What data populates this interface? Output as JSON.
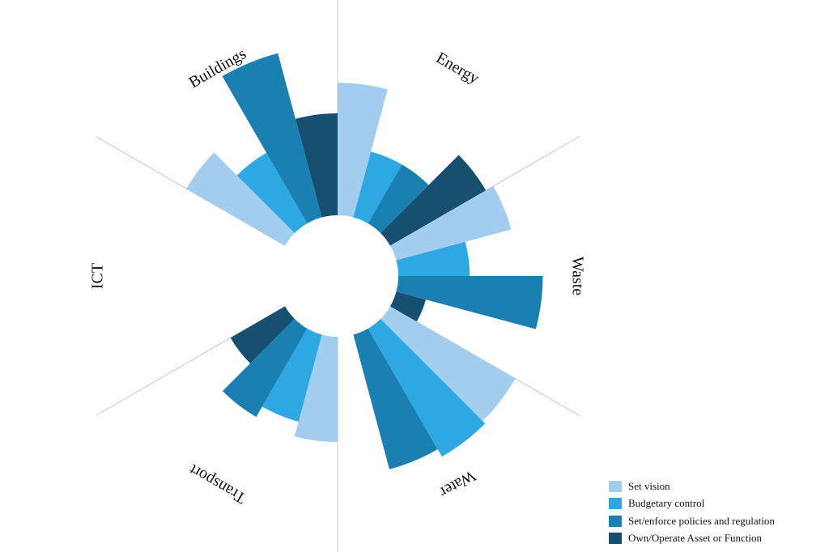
{
  "chart_data": {
    "type": "polar_bar",
    "title": "",
    "sectors": [
      "Energy",
      "Waste",
      "Water",
      "Transport",
      "ICT",
      "Buildings"
    ],
    "series": [
      {
        "name": "Set vision",
        "color": "#a3cdee",
        "values": [
          78,
          70,
          85,
          62,
          0,
          67
        ]
      },
      {
        "name": "Budgetary control",
        "color": "#2da8e2",
        "values": [
          40,
          42,
          87,
          53,
          0,
          48
        ]
      },
      {
        "name": "Set/enforce policies and regulation",
        "color": "#1a80b2",
        "values": [
          40,
          85,
          82,
          60,
          0,
          100
        ]
      },
      {
        "name": "Own/Operate Asset or Function",
        "color": "#174f70",
        "values": [
          65,
          18,
          0,
          37,
          0,
          60
        ]
      }
    ],
    "radial_range": [
      0,
      100
    ],
    "legend_position": "bottom-right",
    "grid": false
  }
}
